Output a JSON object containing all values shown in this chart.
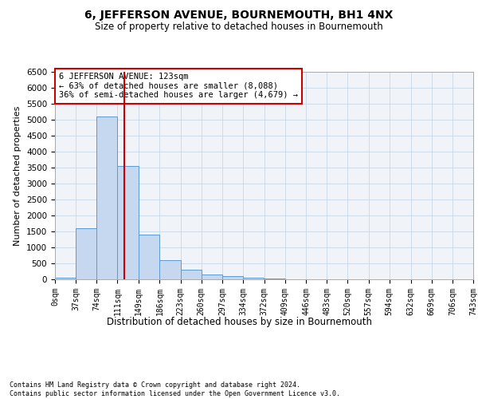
{
  "title": "6, JEFFERSON AVENUE, BOURNEMOUTH, BH1 4NX",
  "subtitle": "Size of property relative to detached houses in Bournemouth",
  "xlabel": "Distribution of detached houses by size in Bournemouth",
  "ylabel": "Number of detached properties",
  "footer_line1": "Contains HM Land Registry data © Crown copyright and database right 2024.",
  "footer_line2": "Contains public sector information licensed under the Open Government Licence v3.0.",
  "bar_color": "#c5d8f0",
  "bar_edge_color": "#5b9bd5",
  "grid_color": "#c8d8e8",
  "annotation_box_color": "#cc0000",
  "red_line_color": "#cc0000",
  "annotation_text_line1": "6 JEFFERSON AVENUE: 123sqm",
  "annotation_text_line2": "← 63% of detached houses are smaller (8,088)",
  "annotation_text_line3": "36% of semi-detached houses are larger (4,679) →",
  "property_size": 123,
  "bin_edges": [
    0,
    37,
    74,
    111,
    149,
    186,
    223,
    260,
    297,
    334,
    372,
    409,
    446,
    483,
    520,
    557,
    594,
    632,
    669,
    706,
    743
  ],
  "bin_labels": [
    "0sqm",
    "37sqm",
    "74sqm",
    "111sqm",
    "149sqm",
    "186sqm",
    "223sqm",
    "260sqm",
    "297sqm",
    "334sqm",
    "372sqm",
    "409sqm",
    "446sqm",
    "483sqm",
    "520sqm",
    "557sqm",
    "594sqm",
    "632sqm",
    "669sqm",
    "706sqm",
    "743sqm"
  ],
  "bar_heights": [
    50,
    1600,
    5100,
    3550,
    1400,
    600,
    300,
    150,
    100,
    50,
    25,
    12,
    5,
    3,
    2,
    1,
    1,
    0,
    0,
    0
  ],
  "ylim": [
    0,
    6500
  ],
  "yticks": [
    0,
    500,
    1000,
    1500,
    2000,
    2500,
    3000,
    3500,
    4000,
    4500,
    5000,
    5500,
    6000,
    6500
  ],
  "bg_color": "#f0f4f8"
}
